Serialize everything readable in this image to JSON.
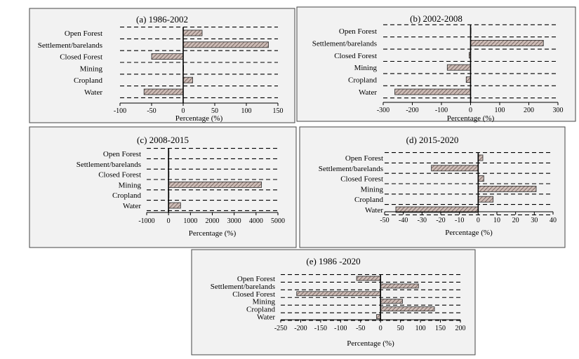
{
  "figure": {
    "background": "#ffffff",
    "panel_fill": "#f2f2f2",
    "bar_fill": "#c9b8b3"
  },
  "chart_data": [
    {
      "type": "bar",
      "orientation": "horizontal",
      "title": "(a) 1986-2002",
      "categories": [
        "Open Forest",
        "Settlement/barelands",
        "Closed Forest",
        "Mining",
        "Cropland",
        "Water"
      ],
      "values": [
        30,
        135,
        -50,
        0,
        15,
        -62
      ],
      "xlabel": "Percentage (%)",
      "xlim": [
        -100,
        150
      ],
      "xticks": [
        -100,
        -50,
        0,
        50,
        100,
        150
      ],
      "grid": "dashed horizontal"
    },
    {
      "type": "bar",
      "orientation": "horizontal",
      "title": "(b) 2002-2008",
      "categories": [
        "Open Forest",
        "Settlement/barelands",
        "Closed Forest",
        "Mining",
        "Cropland",
        "Water"
      ],
      "values": [
        0,
        250,
        -5,
        -80,
        -15,
        -260
      ],
      "xlabel": "Percentage (%)",
      "xlim": [
        -300,
        300
      ],
      "xticks": [
        -300,
        -200,
        -100,
        0,
        100,
        200,
        300
      ],
      "grid": "dashed horizontal"
    },
    {
      "type": "bar",
      "orientation": "horizontal",
      "title": "(c) 2008-2015",
      "categories": [
        "Open Forest",
        "Settlement/barelands",
        "Closed Forest",
        "Mining",
        "Cropland",
        "Water"
      ],
      "values": [
        0,
        0,
        0,
        4250,
        0,
        550
      ],
      "xlabel": "Percentage (%)",
      "xlim": [
        -1000,
        5000
      ],
      "xticks": [
        -1000,
        0,
        1000,
        2000,
        3000,
        4000,
        5000
      ],
      "grid": "dashed horizontal"
    },
    {
      "type": "bar",
      "orientation": "horizontal",
      "title": "(d) 2015-2020",
      "categories": [
        "Open Forest",
        "Settlement/barelands",
        "Closed Forest",
        "Mining",
        "Cropland",
        "Water"
      ],
      "values": [
        2.5,
        -25,
        3,
        31,
        8,
        -44
      ],
      "xlabel": "Percentage (%)",
      "xlim": [
        -50,
        40
      ],
      "xticks": [
        -50,
        -40,
        -30,
        -20,
        -10,
        0,
        10,
        20,
        30,
        40
      ],
      "grid": "dashed horizontal"
    },
    {
      "type": "bar",
      "orientation": "horizontal",
      "title": "(e) 1986 -2020",
      "categories": [
        "Open Forest",
        "Settlement/barelands",
        "Closed Forest",
        "Mining",
        "Cropland",
        "Water"
      ],
      "values": [
        -60,
        95,
        -210,
        55,
        135,
        -10
      ],
      "xlabel": "Percentage (%)",
      "xlim": [
        -250,
        200
      ],
      "xticks": [
        -250,
        -200,
        -150,
        -100,
        -50,
        0,
        50,
        100,
        150,
        200
      ],
      "grid": "dashed horizontal"
    }
  ]
}
